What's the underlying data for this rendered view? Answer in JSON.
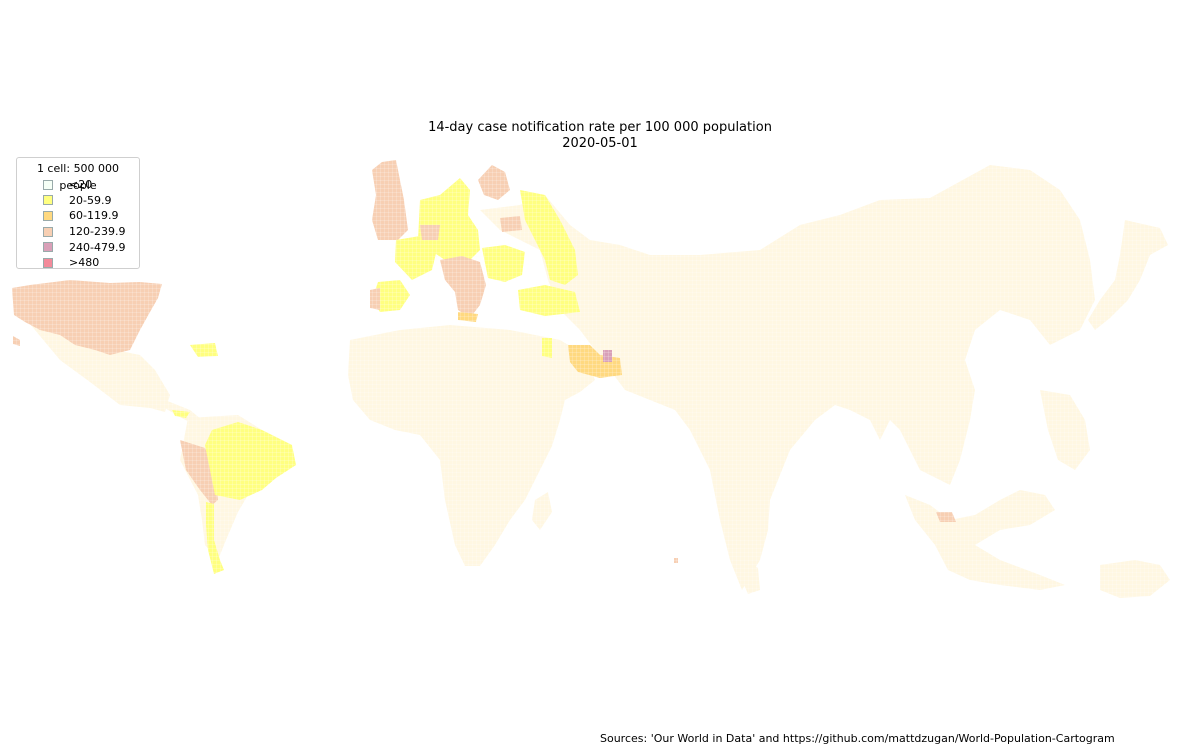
{
  "title": "14-day case notification rate per 100 000 population",
  "date": "2020-05-01",
  "legend": {
    "title": "1 cell: 500 000 people",
    "items": [
      {
        "label": "<20",
        "color": "#f6fff6"
      },
      {
        "label": "20-59.9",
        "color": "#ffff80"
      },
      {
        "label": "60-119.9",
        "color": "#ffd980"
      },
      {
        "label": "120-239.9",
        "color": "#f7cfb3"
      },
      {
        "label": "240-479.9",
        "color": "#d9a0b8"
      },
      {
        "label": ">480",
        "color": "#f38a9a"
      }
    ]
  },
  "sources": "Sources: 'Our World in Data' and https://github.com/mattdzugan/World-Population-Cartogram"
}
